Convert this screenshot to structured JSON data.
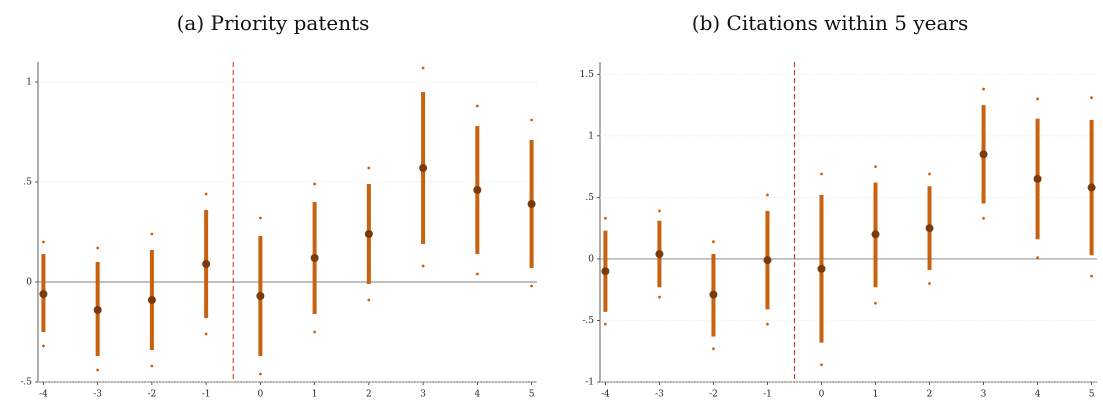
{
  "chart_data": [
    {
      "type": "errorbar",
      "title": "(a) Priority patents",
      "x": [
        -4,
        -3,
        -2,
        -1,
        0,
        1,
        2,
        3,
        4,
        5
      ],
      "values": [
        -0.06,
        -0.14,
        -0.09,
        0.09,
        -0.07,
        0.12,
        0.24,
        0.57,
        0.46,
        0.39
      ],
      "ci90_low": [
        -0.25,
        -0.37,
        -0.34,
        -0.18,
        -0.37,
        -0.16,
        -0.01,
        0.19,
        0.14,
        0.07
      ],
      "ci90_high": [
        0.14,
        0.1,
        0.16,
        0.36,
        0.23,
        0.4,
        0.49,
        0.95,
        0.78,
        0.71
      ],
      "ci95_low": [
        -0.32,
        -0.44,
        -0.42,
        -0.26,
        -0.46,
        -0.25,
        -0.09,
        0.08,
        0.04,
        -0.02
      ],
      "ci95_high": [
        0.2,
        0.17,
        0.24,
        0.44,
        0.32,
        0.49,
        0.57,
        1.07,
        0.88,
        0.81
      ],
      "xlim": [
        -4.1,
        5.1
      ],
      "ylim": [
        -0.5,
        1.1
      ],
      "yticks": [
        {
          "value": -0.5,
          "label": "-.5"
        },
        0,
        {
          "value": 0.5,
          "label": ".5"
        },
        1
      ],
      "xticks": [
        -4,
        -3,
        -2,
        -1,
        0,
        1,
        2,
        3,
        4,
        5
      ],
      "hline": 0,
      "vline": -0.5,
      "grid": true,
      "color": "#c8620e",
      "point_color": "#7a3a0c"
    },
    {
      "type": "errorbar",
      "title": "(b) Citations within 5 years",
      "x": [
        -4,
        -3,
        -2,
        -1,
        0,
        1,
        2,
        3,
        4,
        5
      ],
      "values": [
        -0.1,
        0.04,
        -0.29,
        -0.01,
        -0.08,
        0.2,
        0.25,
        0.85,
        0.65,
        0.58
      ],
      "ci90_low": [
        -0.43,
        -0.23,
        -0.63,
        -0.41,
        -0.68,
        -0.23,
        -0.09,
        0.45,
        0.16,
        0.03
      ],
      "ci90_high": [
        0.23,
        0.31,
        0.04,
        0.39,
        0.52,
        0.62,
        0.59,
        1.25,
        1.14,
        1.13
      ],
      "ci95_low": [
        -0.53,
        -0.31,
        -0.73,
        -0.53,
        -0.86,
        -0.36,
        -0.2,
        0.33,
        0.01,
        -0.14
      ],
      "ci95_high": [
        0.33,
        0.39,
        0.14,
        0.52,
        0.69,
        0.75,
        0.69,
        1.38,
        1.3,
        1.31
      ],
      "xlim": [
        -4.1,
        5.1
      ],
      "ylim": [
        -1,
        1.6
      ],
      "yticks": [
        -1,
        {
          "value": -0.5,
          "label": "-.5"
        },
        0,
        {
          "value": 0.5,
          "label": ".5"
        },
        1,
        1.5
      ],
      "xticks": [
        -4,
        -3,
        -2,
        -1,
        0,
        1,
        2,
        3,
        4,
        5
      ],
      "hline": 0,
      "vline": -0.5,
      "grid": true,
      "color": "#c8620e",
      "point_color": "#7a3a0c"
    }
  ]
}
